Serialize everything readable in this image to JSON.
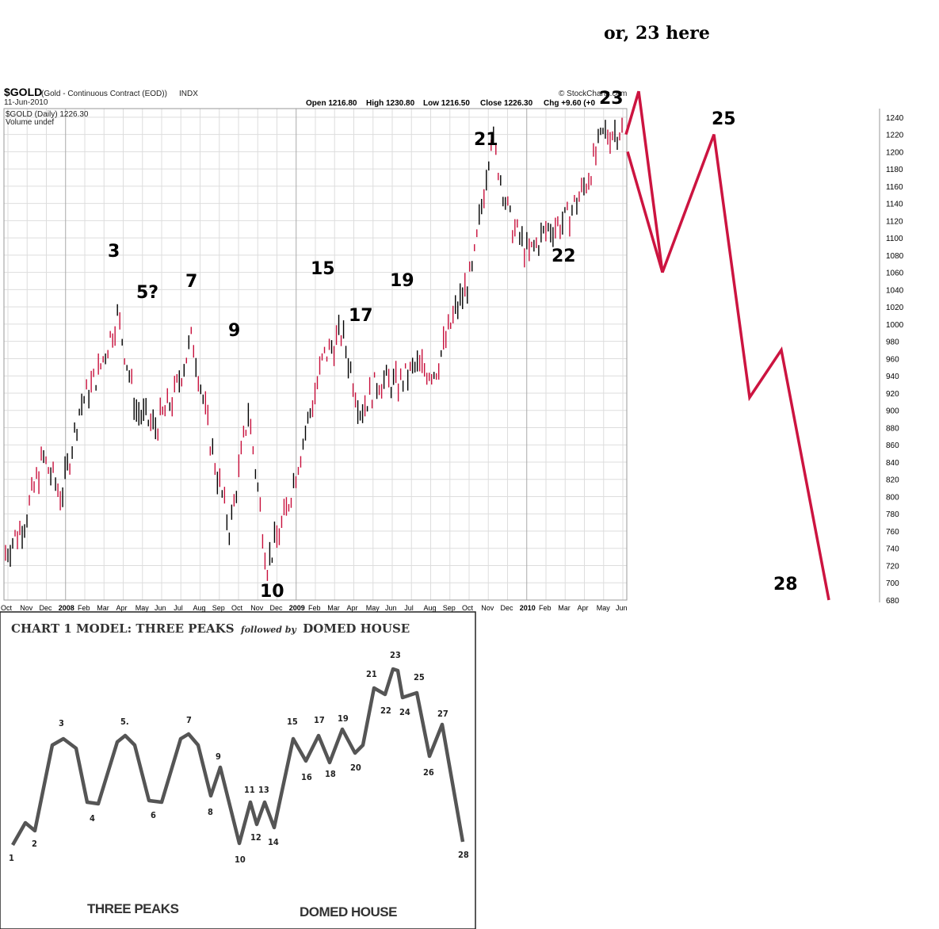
{
  "chart_data": [
    {
      "type": "line",
      "title": "$GOLD",
      "subtitle": "(Gold - Continuous Contract (EOD))",
      "exchange": "INDX",
      "date": "11-Jun-2010",
      "series_label": "$GOLD (Daily) 1226.30",
      "volume_label": "Volume undef",
      "watermark": "© StockCharts.com",
      "quote": {
        "open": "Open 1216.80",
        "high": "High 1230.80",
        "low": "Low 1216.50",
        "close": "Close 1226.30",
        "chg": "Chg +9.60 (+0"
      },
      "ylim": [
        680,
        1250
      ],
      "y_ticks": [
        680,
        700,
        720,
        740,
        760,
        780,
        800,
        820,
        840,
        860,
        880,
        900,
        920,
        940,
        960,
        980,
        1000,
        1020,
        1040,
        1060,
        1080,
        1100,
        1120,
        1140,
        1160,
        1180,
        1200,
        1220,
        1240
      ],
      "x_ticks": [
        "Oct",
        "Nov",
        "Dec",
        "2008",
        "Feb",
        "Mar",
        "Apr",
        "May",
        "Jun",
        "Jul",
        "Aug",
        "Sep",
        "Oct",
        "Nov",
        "Dec",
        "2009",
        "Feb",
        "Mar",
        "Apr",
        "May",
        "Jun",
        "Jul",
        "Aug",
        "Sep",
        "Oct",
        "Nov",
        "Dec",
        "2010",
        "Feb",
        "Mar",
        "Apr",
        "May",
        "Jun"
      ],
      "series": [
        {
          "name": "$GOLD (Daily)",
          "x": [
            "Sep 2007",
            "Oct 2007",
            "Nov 2007",
            "Dec 2007",
            "Jan 2008",
            "Feb 2008",
            "Mar 2008",
            "Apr 2008",
            "May 2008",
            "Jun 2008",
            "Jul 2008",
            "Aug 2008",
            "Sep 2008",
            "Oct 2008",
            "Nov 2008",
            "Dec 2008",
            "Jan 2009",
            "Feb 2009",
            "Mar 2009",
            "Apr 2009",
            "May 2009",
            "Jun 2009",
            "Jul 2009",
            "Aug 2009",
            "Sep 2009",
            "Oct 2009",
            "Nov 2009",
            "Dec 2009",
            "Jan 2010",
            "Feb 2010",
            "Mar 2010",
            "Apr 2010",
            "May 2010",
            "Jun 2010"
          ],
          "values": [
            735,
            770,
            845,
            800,
            905,
            945,
            1010,
            900,
            880,
            915,
            985,
            860,
            760,
            900,
            720,
            780,
            870,
            960,
            990,
            900,
            935,
            930,
            950,
            945,
            1010,
            1060,
            1220,
            1120,
            1080,
            1110,
            1120,
            1160,
            1220,
            1226
          ]
        },
        {
          "name": "projection",
          "x": [
            "Jun 2010",
            "Jun 2010",
            "2010+",
            "2010+",
            "2010+",
            "2010+",
            "2010+"
          ],
          "values": [
            1220,
            1270,
            1060,
            1220,
            915,
            970,
            680
          ]
        }
      ],
      "wave_labels": [
        "3",
        "5?",
        "7",
        "9",
        "10",
        "15",
        "17",
        "19",
        "21",
        "22",
        "23",
        "25",
        "28"
      ],
      "annotation": "or, 23 here"
    },
    {
      "type": "line",
      "title": "CHART 1   MODEL: THREE PEAKS",
      "title_italic": "followed by",
      "title_end": "DOMED HOUSE",
      "captions": [
        "THREE PEAKS",
        "DOMED HOUSE"
      ],
      "points": [
        "1",
        "2",
        "3",
        "4",
        "5.",
        "6",
        "7",
        "8",
        "9",
        "10",
        "11",
        "12",
        "13",
        "14",
        "15",
        "16",
        "17",
        "18",
        "19",
        "20",
        "21",
        "22",
        "23",
        "24",
        "25",
        "26",
        "27",
        "28"
      ]
    }
  ]
}
